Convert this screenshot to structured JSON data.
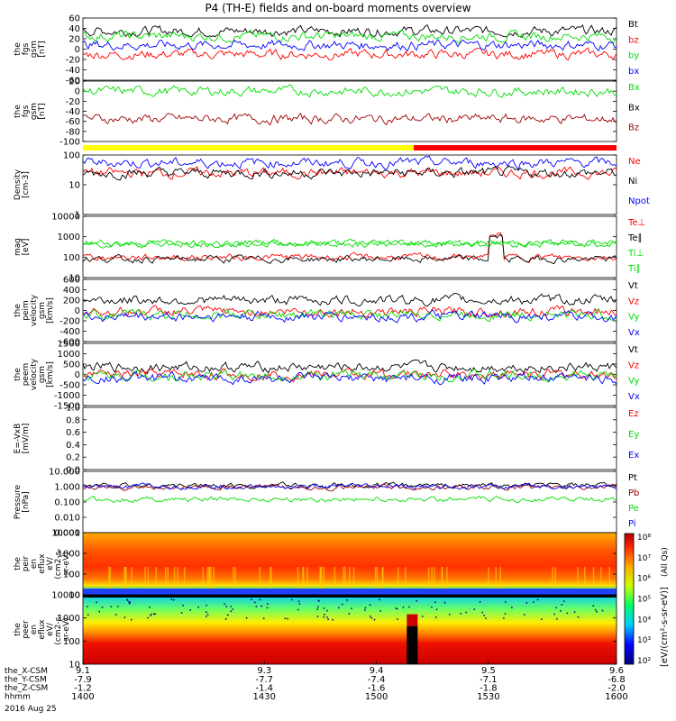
{
  "title": "P4 (TH-E) fields and on-board moments overview",
  "colors": {
    "black": "#000000",
    "red": "#ff0000",
    "green": "#00dd00",
    "blue": "#0000ff",
    "darkred": "#a00000",
    "yellow": "#ffff00"
  },
  "panels": [
    {
      "id": "fgs",
      "ylabel": [
        "the",
        "fgs",
        "gsm",
        "[nT]"
      ],
      "ticks": [
        "60",
        "40",
        "20",
        "0",
        "-20",
        "-40",
        "-60"
      ],
      "legend": [
        {
          "text": "Bt",
          "color": "black"
        },
        {
          "text": "bz",
          "color": "red"
        },
        {
          "text": "by",
          "color": "green"
        },
        {
          "text": "bx",
          "color": "blue"
        }
      ]
    },
    {
      "id": "fgs2",
      "ylabel": [
        "the",
        "fgs",
        "gsm",
        "[nT]"
      ],
      "ticks": [
        "20",
        "0",
        "-20",
        "-40",
        "-60",
        "-80",
        "-100"
      ],
      "legend": [
        {
          "text": "Bx",
          "color": "green"
        },
        {
          "text": "Bx",
          "color": "black"
        },
        {
          "text": "Bz",
          "color": "darkred"
        }
      ]
    },
    {
      "id": "density",
      "ylabel": [
        "Density",
        "[cm-3]"
      ],
      "ticks": [
        "100",
        "10",
        "1"
      ],
      "legend": [
        {
          "text": "Ne",
          "color": "red"
        },
        {
          "text": "Ni",
          "color": "black"
        },
        {
          "text": "Npot",
          "color": "blue"
        }
      ]
    },
    {
      "id": "temp",
      "ylabel": [
        "mag",
        "[eV]"
      ],
      "ticks": [
        "10000",
        "1000",
        "100",
        "10"
      ],
      "legend": [
        {
          "text": "Te⊥",
          "color": "red"
        },
        {
          "text": "Te∥",
          "color": "black"
        },
        {
          "text": "Ti⊥",
          "color": "green"
        },
        {
          "text": "Ti∥",
          "color": "green"
        }
      ]
    },
    {
      "id": "peim_v",
      "ylabel": [
        "the",
        "peim",
        "velocity",
        "gsm",
        "[km/s]"
      ],
      "ticks": [
        "600",
        "400",
        "200",
        "0",
        "-200",
        "-400",
        "-600"
      ],
      "legend": [
        {
          "text": "Vt",
          "color": "black"
        },
        {
          "text": "Vz",
          "color": "red"
        },
        {
          "text": "Vy",
          "color": "green"
        },
        {
          "text": "Vx",
          "color": "blue"
        }
      ]
    },
    {
      "id": "peem_v",
      "ylabel": [
        "the",
        "peem",
        "velocity",
        "gsm",
        "[km/s]"
      ],
      "ticks": [
        "1500",
        "1000",
        "500",
        "0",
        "-500",
        "-1000",
        "-1500"
      ],
      "legend": [
        {
          "text": "Vt",
          "color": "black"
        },
        {
          "text": "Vz",
          "color": "red"
        },
        {
          "text": "Vy",
          "color": "green"
        },
        {
          "text": "Vx",
          "color": "blue"
        }
      ]
    },
    {
      "id": "efield",
      "ylabel": [
        "E=-VxB",
        "[mV/m]"
      ],
      "ticks": [
        "1.0",
        "0.8",
        "0.6",
        "0.4",
        "0.2",
        "0.0"
      ],
      "legend": [
        {
          "text": "Ez",
          "color": "red"
        },
        {
          "text": "Ey",
          "color": "green"
        },
        {
          "text": "Ex",
          "color": "blue"
        }
      ]
    },
    {
      "id": "pressure",
      "ylabel": [
        "Pressure",
        "[nPa]"
      ],
      "ticks": [
        "10.000",
        "1.000",
        "0.100",
        "0.010",
        "0.001"
      ],
      "legend": [
        {
          "text": "Pt",
          "color": "black"
        },
        {
          "text": "Pb",
          "color": "darkred"
        },
        {
          "text": "Pe",
          "color": "green"
        },
        {
          "text": "Pi",
          "color": "blue"
        }
      ]
    },
    {
      "id": "peir",
      "ylabel": [
        "the",
        "peir",
        "en",
        "eflux",
        "eV/",
        "(cm2-s-",
        "sr-eV)"
      ],
      "ticks": [
        "10000",
        "1000",
        "100",
        "10"
      ],
      "legend": []
    },
    {
      "id": "peer",
      "ylabel": [
        "the",
        "peer",
        "en",
        "eflux",
        "eV/",
        "(cm2-s-",
        "sr-eV)"
      ],
      "ticks": [
        "10000",
        "1000",
        "100",
        "10"
      ],
      "legend": []
    }
  ],
  "colorbar": {
    "ticks": [
      "10⁸",
      "10⁷",
      "10⁶",
      "10⁵",
      "10⁴",
      "10³",
      "10²"
    ],
    "label": "[eV/(cm²-s-sr-eV)]",
    "label2": "(All Qs)"
  },
  "xaxis": {
    "ticks": [
      "9.1",
      "9.3",
      "9.4",
      "9.5",
      "9.6"
    ],
    "rows": [
      {
        "label": "the_X-CSM",
        "values": [
          "-7.9",
          "-7.7",
          "-7.4",
          "-7.1",
          "-6.8"
        ]
      },
      {
        "label": "the_Y-CSM",
        "values": [
          "-1.2",
          "-1.4",
          "-1.6",
          "-1.8",
          "-2.0"
        ]
      },
      {
        "label": "the_Z-CSM",
        "values": [
          "1400",
          "1430",
          "1500",
          "1530",
          "1600"
        ]
      },
      {
        "label": "hhmm",
        "values": []
      }
    ],
    "date": "2016 Aug 25"
  },
  "chart_data": {
    "type": "line",
    "title": "P4 (TH-E) fields and on-board moments overview",
    "x_label_units": "hhmm",
    "x_ticks_hhmm": [
      "1400",
      "1430",
      "1500",
      "1530",
      "1600"
    ],
    "panels": [
      {
        "name": "the fgs gsm [nT]",
        "ylim": [
          -60,
          60
        ],
        "series": [
          {
            "name": "Bt",
            "level": 35
          },
          {
            "name": "bz",
            "level": -10
          },
          {
            "name": "by",
            "level": 25
          },
          {
            "name": "bx",
            "level": 8
          }
        ]
      },
      {
        "name": "the fgs gsm [nT] (2)",
        "ylim": [
          -100,
          20
        ],
        "series": [
          {
            "name": "Bx",
            "level": 0
          },
          {
            "name": "Bz",
            "level": -55
          }
        ]
      },
      {
        "name": "Density [cm-3]",
        "scale": "log",
        "ylim": [
          1,
          100
        ],
        "series": [
          {
            "name": "Ne",
            "level": 25
          },
          {
            "name": "Ni",
            "level": 25
          },
          {
            "name": "Npot",
            "level": 55
          }
        ]
      },
      {
        "name": "mag [eV]",
        "scale": "log",
        "ylim": [
          10,
          10000
        ],
        "series": [
          {
            "name": "Te⊥",
            "level": 100
          },
          {
            "name": "Te∥",
            "level": 80
          },
          {
            "name": "Ti⊥",
            "level": 500
          },
          {
            "name": "Ti∥",
            "level": 450
          }
        ]
      },
      {
        "name": "the peim velocity gsm [km/s]",
        "ylim": [
          -600,
          600
        ],
        "series": [
          {
            "name": "Vt",
            "level": 200
          },
          {
            "name": "Vz",
            "level": -20
          },
          {
            "name": "Vy",
            "level": -80
          },
          {
            "name": "Vx",
            "level": -120
          }
        ]
      },
      {
        "name": "the peem velocity gsm [km/s]",
        "ylim": [
          -1500,
          1500
        ],
        "series": [
          {
            "name": "Vt",
            "level": 350
          },
          {
            "name": "Vz",
            "level": 0
          },
          {
            "name": "Vy",
            "level": -60
          },
          {
            "name": "Vx",
            "level": -200
          }
        ]
      },
      {
        "name": "E=-VxB [mV/m]",
        "ylim": [
          0,
          1
        ],
        "series": []
      },
      {
        "name": "Pressure [nPa]",
        "scale": "log",
        "ylim": [
          0.001,
          10
        ],
        "series": [
          {
            "name": "Pt",
            "level": 1.2
          },
          {
            "name": "Pb",
            "level": 0.9
          },
          {
            "name": "Pe",
            "level": 0.15
          },
          {
            "name": "Pi",
            "level": 1.0
          }
        ]
      }
    ],
    "spectrograms": [
      {
        "name": "the peir en eflux",
        "scale": "log",
        "ylim": [
          10,
          20000
        ]
      },
      {
        "name": "the peer en eflux",
        "scale": "log",
        "ylim": [
          10,
          20000
        ]
      }
    ]
  }
}
